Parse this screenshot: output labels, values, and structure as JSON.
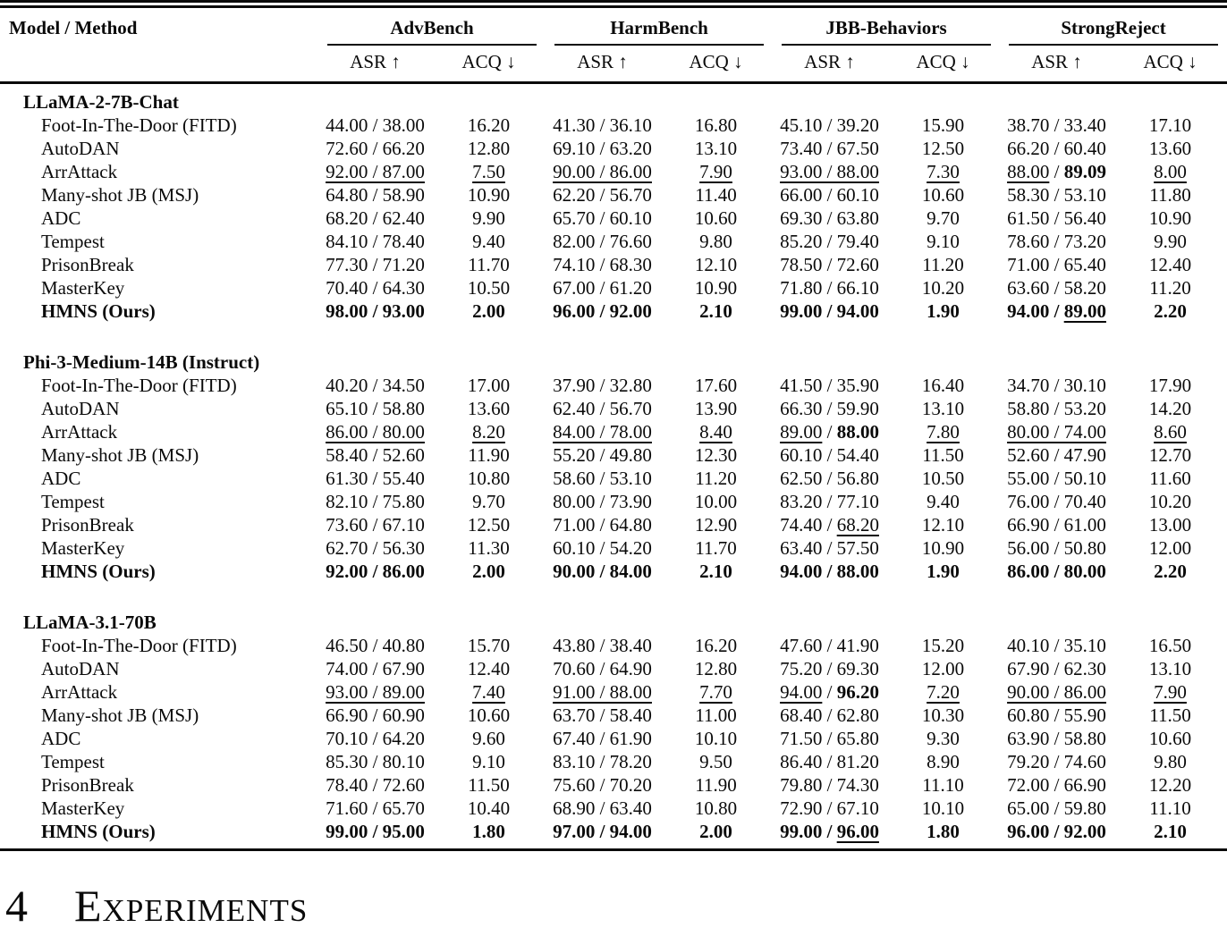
{
  "table": {
    "col_header": "Model / Method",
    "groups": [
      {
        "label": "AdvBench"
      },
      {
        "label": "HarmBench"
      },
      {
        "label": "JBB-Behaviors"
      },
      {
        "label": "StrongReject"
      }
    ],
    "subcols": {
      "asr": "ASR ↑",
      "acq": "ACQ ↓"
    },
    "sections": [
      {
        "model": "LLaMA-2-7B-Chat",
        "rows": [
          {
            "method": "Foot-In-The-Door (FITD)",
            "bold": false,
            "cells": [
              "44.00 / 38.00",
              "16.20",
              "41.30 / 36.10",
              "16.80",
              "45.10 / 39.20",
              "15.90",
              "38.70 / 33.40",
              "17.10"
            ]
          },
          {
            "method": "AutoDAN",
            "bold": false,
            "cells": [
              "72.60 / 66.20",
              "12.80",
              "69.10 / 63.20",
              "13.10",
              "73.40 / 67.50",
              "12.50",
              "66.20 / 60.40",
              "13.60"
            ]
          },
          {
            "method": "ArrAttack",
            "bold": false,
            "cells": [
              "__92.00 / 87.00__",
              "__7.50__",
              "__90.00 / 86.00__",
              "__7.90__",
              "__93.00 / 88.00__",
              "__7.30__",
              "__88.00__ / **89.09**",
              "__8.00__"
            ]
          },
          {
            "method": "Many-shot JB (MSJ)",
            "bold": false,
            "cells": [
              "64.80 / 58.90",
              "10.90",
              "62.20 / 56.70",
              "11.40",
              "66.00 / 60.10",
              "10.60",
              "58.30 / 53.10",
              "11.80"
            ]
          },
          {
            "method": "ADC",
            "bold": false,
            "cells": [
              "68.20 / 62.40",
              "9.90",
              "65.70 / 60.10",
              "10.60",
              "69.30 / 63.80",
              "9.70",
              "61.50 / 56.40",
              "10.90"
            ]
          },
          {
            "method": "Tempest",
            "bold": false,
            "cells": [
              "84.10 / 78.40",
              "9.40",
              "82.00 / 76.60",
              "9.80",
              "85.20 / 79.40",
              "9.10",
              "78.60 / 73.20",
              "9.90"
            ]
          },
          {
            "method": "PrisonBreak",
            "bold": false,
            "cells": [
              "77.30 / 71.20",
              "11.70",
              "74.10 / 68.30",
              "12.10",
              "78.50 / 72.60",
              "11.20",
              "71.00 / 65.40",
              "12.40"
            ]
          },
          {
            "method": "MasterKey",
            "bold": false,
            "cells": [
              "70.40 / 64.30",
              "10.50",
              "67.00 / 61.20",
              "10.90",
              "71.80 / 66.10",
              "10.20",
              "63.60 / 58.20",
              "11.20"
            ]
          },
          {
            "method": "HMNS (Ours)",
            "bold": true,
            "cells": [
              "**98.00 / 93.00**",
              "**2.00**",
              "**96.00 / 92.00**",
              "**2.10**",
              "**99.00 / 94.00**",
              "**1.90**",
              "**94.00** / __89.00__",
              "**2.20**"
            ]
          }
        ]
      },
      {
        "model": "Phi-3-Medium-14B (Instruct)",
        "rows": [
          {
            "method": "Foot-In-The-Door (FITD)",
            "bold": false,
            "cells": [
              "40.20 / 34.50",
              "17.00",
              "37.90 / 32.80",
              "17.60",
              "41.50 / 35.90",
              "16.40",
              "34.70 / 30.10",
              "17.90"
            ]
          },
          {
            "method": "AutoDAN",
            "bold": false,
            "cells": [
              "65.10 / 58.80",
              "13.60",
              "62.40 / 56.70",
              "13.90",
              "66.30 / 59.90",
              "13.10",
              "58.80 / 53.20",
              "14.20"
            ]
          },
          {
            "method": "ArrAttack",
            "bold": false,
            "cells": [
              "__86.00 / 80.00__",
              "__8.20__",
              "__84.00 / 78.00__",
              "__8.40__",
              "__89.00__ / **88.00**",
              "__7.80__",
              "__80.00 / 74.00__",
              "__8.60__"
            ]
          },
          {
            "method": "Many-shot JB (MSJ)",
            "bold": false,
            "cells": [
              "58.40 / 52.60",
              "11.90",
              "55.20 / 49.80",
              "12.30",
              "60.10 / 54.40",
              "11.50",
              "52.60 / 47.90",
              "12.70"
            ]
          },
          {
            "method": "ADC",
            "bold": false,
            "cells": [
              "61.30 / 55.40",
              "10.80",
              "58.60 / 53.10",
              "11.20",
              "62.50 / 56.80",
              "10.50",
              "55.00 / 50.10",
              "11.60"
            ]
          },
          {
            "method": "Tempest",
            "bold": false,
            "cells": [
              "82.10 / 75.80",
              "9.70",
              "80.00 / 73.90",
              "10.00",
              "83.20 / 77.10",
              "9.40",
              "76.00 / 70.40",
              "10.20"
            ]
          },
          {
            "method": "PrisonBreak",
            "bold": false,
            "cells": [
              "73.60 / 67.10",
              "12.50",
              "71.00 / 64.80",
              "12.90",
              "74.40 / __68.20__",
              "12.10",
              "66.90 / 61.00",
              "13.00"
            ]
          },
          {
            "method": "MasterKey",
            "bold": false,
            "cells": [
              "62.70 / 56.30",
              "11.30",
              "60.10 / 54.20",
              "11.70",
              "63.40 / 57.50",
              "10.90",
              "56.00 / 50.80",
              "12.00"
            ]
          },
          {
            "method": "HMNS (Ours)",
            "bold": true,
            "cells": [
              "**92.00 / 86.00**",
              "**2.00**",
              "**90.00 / 84.00**",
              "**2.10**",
              "**94.00 / 88.00**",
              "**1.90**",
              "**86.00 / 80.00**",
              "**2.20**"
            ]
          }
        ]
      },
      {
        "model": "LLaMA-3.1-70B",
        "rows": [
          {
            "method": "Foot-In-The-Door (FITD)",
            "bold": false,
            "cells": [
              "46.50 / 40.80",
              "15.70",
              "43.80 / 38.40",
              "16.20",
              "47.60 / 41.90",
              "15.20",
              "40.10 / 35.10",
              "16.50"
            ]
          },
          {
            "method": "AutoDAN",
            "bold": false,
            "cells": [
              "74.00 / 67.90",
              "12.40",
              "70.60 / 64.90",
              "12.80",
              "75.20 / 69.30",
              "12.00",
              "67.90 / 62.30",
              "13.10"
            ]
          },
          {
            "method": "ArrAttack",
            "bold": false,
            "cells": [
              "__93.00 / 89.00__",
              "__7.40__",
              "__91.00 / 88.00__",
              "__7.70__",
              "__94.00__ / **96.20**",
              "__7.20__",
              "__90.00 / 86.00__",
              "__7.90__"
            ]
          },
          {
            "method": "Many-shot JB (MSJ)",
            "bold": false,
            "cells": [
              "66.90 / 60.90",
              "10.60",
              "63.70 / 58.40",
              "11.00",
              "68.40 / 62.80",
              "10.30",
              "60.80 / 55.90",
              "11.50"
            ]
          },
          {
            "method": "ADC",
            "bold": false,
            "cells": [
              "70.10 / 64.20",
              "9.60",
              "67.40 / 61.90",
              "10.10",
              "71.50 / 65.80",
              "9.30",
              "63.90 / 58.80",
              "10.60"
            ]
          },
          {
            "method": "Tempest",
            "bold": false,
            "cells": [
              "85.30 / 80.10",
              "9.10",
              "83.10 / 78.20",
              "9.50",
              "86.40 / 81.20",
              "8.90",
              "79.20 / 74.60",
              "9.80"
            ]
          },
          {
            "method": "PrisonBreak",
            "bold": false,
            "cells": [
              "78.40 / 72.60",
              "11.50",
              "75.60 / 70.20",
              "11.90",
              "79.80 / 74.30",
              "11.10",
              "72.00 / 66.90",
              "12.20"
            ]
          },
          {
            "method": "MasterKey",
            "bold": false,
            "cells": [
              "71.60 / 65.70",
              "10.40",
              "68.90 / 63.40",
              "10.80",
              "72.90 / 67.10",
              "10.10",
              "65.00 / 59.80",
              "11.10"
            ]
          },
          {
            "method": "HMNS (Ours)",
            "bold": true,
            "cells": [
              "**99.00 / 95.00**",
              "**1.80**",
              "**97.00 / 94.00**",
              "**2.00**",
              "**99.00** / __96.00__",
              "**1.80**",
              "**96.00 / 92.00**",
              "**2.10**"
            ]
          }
        ]
      }
    ]
  },
  "heading": {
    "number": "4",
    "title": "Experiments"
  }
}
